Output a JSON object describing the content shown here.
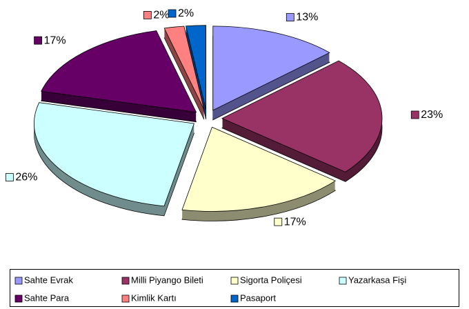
{
  "chart_data": {
    "type": "pie",
    "categories": [
      "Sahte Evrak",
      "Milli Piyango Bileti",
      "Sigorta Poliçesi",
      "Yazarkasa Fişi",
      "Sahte Para",
      "Kimlik Kartı",
      "Pasaport"
    ],
    "values": [
      13,
      23,
      17,
      26,
      17,
      2,
      2
    ],
    "value_labels": [
      "13%",
      "23%",
      "17%",
      "26%",
      "17%",
      "2%",
      "2%"
    ],
    "colors": [
      "#9999ff",
      "#993366",
      "#ffffcc",
      "#ccffff",
      "#660066",
      "#ff8080",
      "#0066cc"
    ],
    "legend": "bottom"
  }
}
